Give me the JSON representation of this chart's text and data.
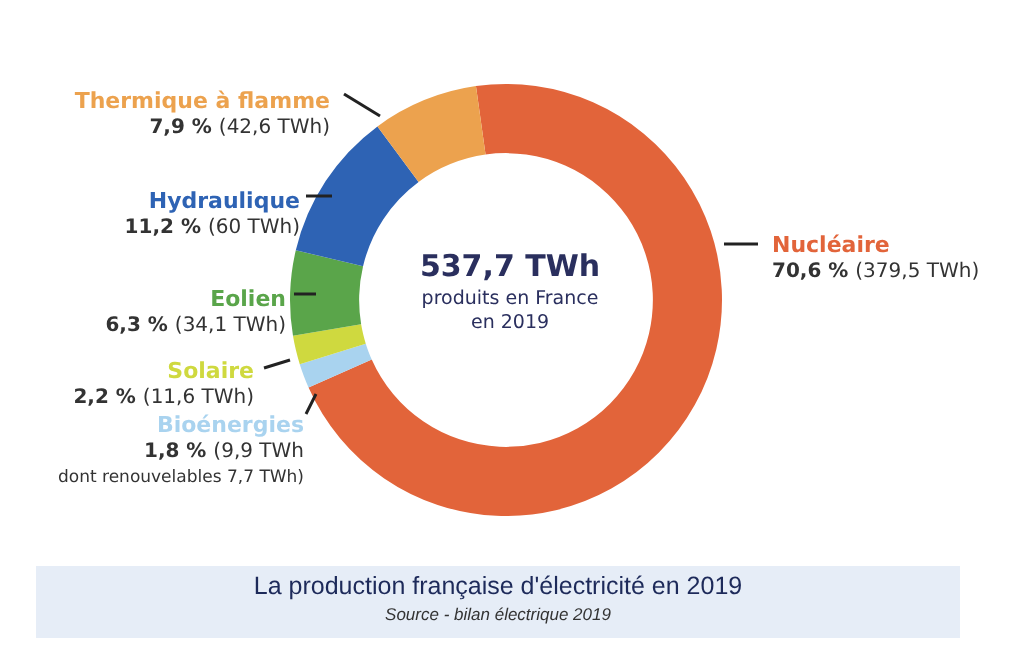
{
  "chart_data": {
    "type": "donut",
    "title": "La production française d'électricité en 2019",
    "categories": [
      "Nucléaire",
      "Bioénergies",
      "Solaire",
      "Eolien",
      "Hydraulique",
      "Thermique à flamme"
    ],
    "values": [
      379.5,
      9.9,
      11.6,
      34.1,
      60,
      42.6
    ],
    "colors": [
      "#e2643a",
      "#a9d3ef",
      "#cfd93f",
      "#5aa54a",
      "#2e63b4",
      "#eca24e"
    ],
    "value_labels": [
      "70,6 % (379,5 TWh)",
      "1,8 % (9,9 TWh\ndont renouvelables 7,7 TWh)",
      "2,2 % (11,6 TWh)",
      "6,3 % (34,1 TWh)",
      "11,2 % (60 TWh)",
      "7,9 % (42,6 TWh)"
    ],
    "annotations": [
      "537,7 TWh",
      "produits en France en 2019",
      "Source - bilan électrique 2019"
    ],
    "legend": false
  }
}
